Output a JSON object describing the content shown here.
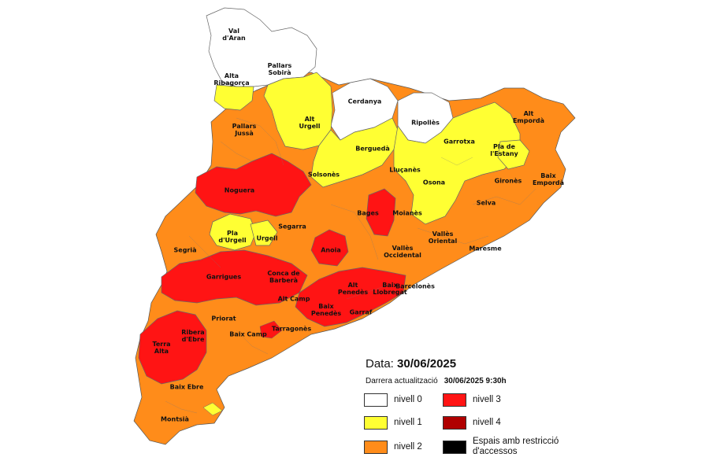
{
  "colors": {
    "nivell_0": "#ffffff",
    "nivell_1": "#ffff33",
    "nivell_2": "#ff8c1a",
    "nivell_3": "#ff1414",
    "nivell_4": "#b00000",
    "espais": "#000000",
    "border": "#555555"
  },
  "map": {
    "regions": [
      {
        "name": "Val\nd'Aran",
        "level": "nivell_0"
      },
      {
        "name": "Pallars\nSobirà",
        "level": "nivell_0"
      },
      {
        "name": "Alta\nRibagorça",
        "level": "nivell_1"
      },
      {
        "name": "Cerdanya",
        "level": "nivell_0"
      },
      {
        "name": "Ripollès",
        "level": "nivell_0"
      },
      {
        "name": "Alt\nEmpordà",
        "level": "nivell_2"
      },
      {
        "name": "Pallars\nJussà",
        "level": "nivell_2"
      },
      {
        "name": "Alt\nUrgell",
        "level": "nivell_1"
      },
      {
        "name": "Berguedà",
        "level": "nivell_1"
      },
      {
        "name": "Garrotxa",
        "level": "nivell_1"
      },
      {
        "name": "Pla de\nl'Estany",
        "level": "nivell_1"
      },
      {
        "name": "Solsonès",
        "level": "nivell_1"
      },
      {
        "name": "Lluçanès",
        "level": "nivell_1"
      },
      {
        "name": "Osona",
        "level": "nivell_1"
      },
      {
        "name": "Gironès",
        "level": "nivell_2"
      },
      {
        "name": "Baix\nEmpordà",
        "level": "nivell_2"
      },
      {
        "name": "Noguera",
        "level": "nivell_3"
      },
      {
        "name": "Selva",
        "level": "nivell_2"
      },
      {
        "name": "Bages",
        "level": "nivell_3"
      },
      {
        "name": "Moianès",
        "level": "nivell_2"
      },
      {
        "name": "Segarra",
        "level": "nivell_2"
      },
      {
        "name": "Pla\nd'Urgell",
        "level": "nivell_1"
      },
      {
        "name": "Urgell",
        "level": "nivell_1"
      },
      {
        "name": "Vallès\nOriental",
        "level": "nivell_2"
      },
      {
        "name": "Segrià",
        "level": "nivell_2"
      },
      {
        "name": "Anoia",
        "level": "nivell_3"
      },
      {
        "name": "Maresme",
        "level": "nivell_2"
      },
      {
        "name": "Vallès\nOccidental",
        "level": "nivell_2"
      },
      {
        "name": "Garrigues",
        "level": "nivell_3"
      },
      {
        "name": "Conca de\nBarberà",
        "level": "nivell_3"
      },
      {
        "name": "Alt\nPenedès",
        "level": "nivell_3"
      },
      {
        "name": "Baix\nLlobregat",
        "level": "nivell_3"
      },
      {
        "name": "Barcelonès",
        "level": "nivell_2"
      },
      {
        "name": "Alt Camp",
        "level": "nivell_3"
      },
      {
        "name": "Baix\nPenedès",
        "level": "nivell_3"
      },
      {
        "name": "Garraf",
        "level": "nivell_2"
      },
      {
        "name": "Priorat",
        "level": "nivell_2"
      },
      {
        "name": "Ribera\nd'Ebre",
        "level": "nivell_3"
      },
      {
        "name": "Baix Camp",
        "level": "nivell_2"
      },
      {
        "name": "Tarragonès",
        "level": "nivell_2"
      },
      {
        "name": "Terra\nAlta",
        "level": "nivell_3"
      },
      {
        "name": "Baix Ebre",
        "level": "nivell_2"
      },
      {
        "name": "Montsià",
        "level": "nivell_2"
      }
    ]
  },
  "legend": {
    "date_label": "Data:",
    "date_value": "30/06/2025",
    "update_label": "Darrera actualització",
    "update_value": "30/06/2025 9:30h",
    "items": [
      {
        "key": "nivell_0",
        "label": "nivell 0"
      },
      {
        "key": "nivell_3",
        "label": "nivell 3"
      },
      {
        "key": "nivell_1",
        "label": "nivell 1"
      },
      {
        "key": "nivell_4",
        "label": "nivell 4"
      },
      {
        "key": "nivell_2",
        "label": "nivell 2"
      },
      {
        "key": "espais",
        "label": "Espais amb restricció\nd'accessos"
      }
    ]
  }
}
